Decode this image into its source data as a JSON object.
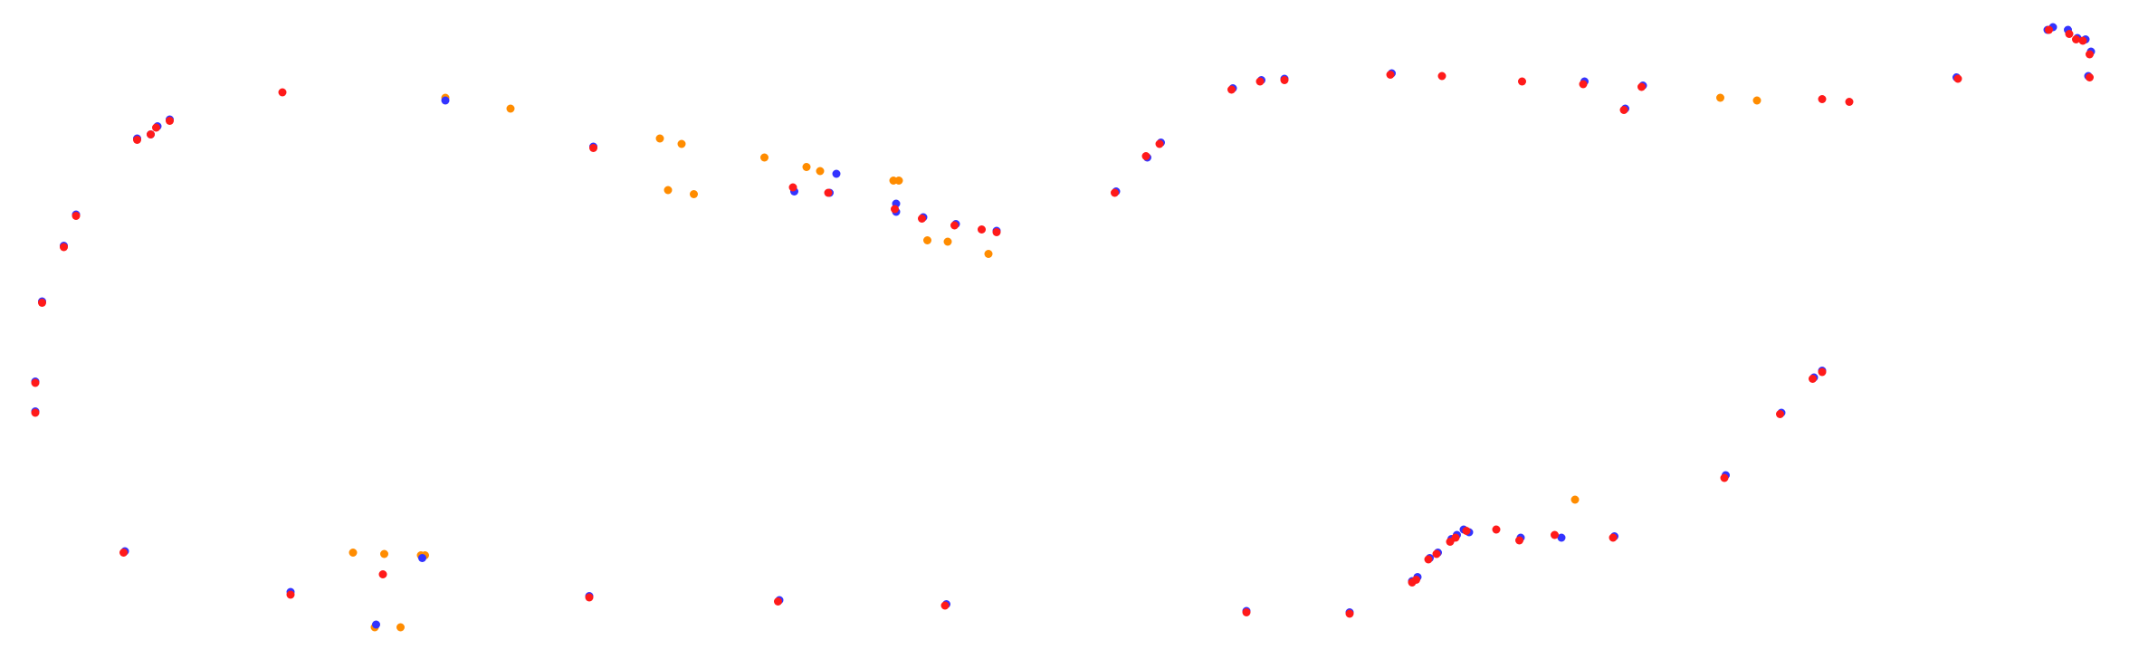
{
  "chart_data": {
    "type": "scatter",
    "title": "",
    "xlabel": "",
    "ylabel": "",
    "grid": false,
    "legend": "none",
    "axes_visible": false,
    "xlim": [
      0,
      1568
    ],
    "ylim": [
      478,
      0
    ],
    "colors": {
      "orange": "#ff8c00",
      "blue": "#3333ff",
      "red": "#ff1a1a"
    },
    "series": [
      {
        "color": "#ff8c00",
        "points": [
          [
            276,
            16
          ],
          [
            295,
            16
          ],
          [
            260,
            71
          ],
          [
            283,
            70
          ],
          [
            310,
            69
          ],
          [
            313,
            69
          ],
          [
            492,
            338
          ],
          [
            511,
            335
          ],
          [
            502,
            372
          ],
          [
            486,
            376
          ],
          [
            376,
            398
          ],
          [
            328,
            406
          ],
          [
            594,
            355
          ],
          [
            604,
            352
          ],
          [
            658,
            345
          ],
          [
            662,
            345
          ],
          [
            683,
            301
          ],
          [
            698,
            300
          ],
          [
            728,
            291
          ],
          [
            563,
            362
          ],
          [
            1160,
            110
          ],
          [
            1267,
            406
          ],
          [
            1294,
            404
          ]
        ]
      },
      {
        "color": "#3333ff",
        "points": [
          [
            214,
            42
          ],
          [
            92,
            72
          ],
          [
            277,
            18
          ],
          [
            311,
            67
          ],
          [
            434,
            39
          ],
          [
            574,
            36
          ],
          [
            697,
            33
          ],
          [
            918,
            28
          ],
          [
            994,
            27
          ],
          [
            1040,
            50
          ],
          [
            1044,
            53
          ],
          [
            1053,
            67
          ],
          [
            1059,
            71
          ],
          [
            1069,
            81
          ],
          [
            1073,
            84
          ],
          [
            1078,
            88
          ],
          [
            1082,
            86
          ],
          [
            1120,
            82
          ],
          [
            1150,
            82
          ],
          [
            1189,
            83
          ],
          [
            1271,
            128
          ],
          [
            1312,
            174
          ],
          [
            1336,
            200
          ],
          [
            1342,
            205
          ],
          [
            26,
            175
          ],
          [
            26,
            197
          ],
          [
            31,
            256
          ],
          [
            47,
            297
          ],
          [
            56,
            320
          ],
          [
            101,
            376
          ],
          [
            111,
            379
          ],
          [
            116,
            385
          ],
          [
            125,
            390
          ],
          [
            328,
            404
          ],
          [
            437,
            370
          ],
          [
            585,
            337
          ],
          [
            611,
            336
          ],
          [
            616,
            350
          ],
          [
            660,
            322
          ],
          [
            660,
            328
          ],
          [
            680,
            318
          ],
          [
            704,
            313
          ],
          [
            734,
            308
          ],
          [
            822,
            337
          ],
          [
            845,
            362
          ],
          [
            855,
            373
          ],
          [
            908,
            413
          ],
          [
            929,
            419
          ],
          [
            946,
            420
          ],
          [
            1025,
            424
          ],
          [
            1167,
            418
          ],
          [
            1197,
            398
          ],
          [
            1210,
            415
          ],
          [
            1441,
            421
          ],
          [
            1508,
            456
          ],
          [
            1512,
            458
          ],
          [
            1523,
            456
          ],
          [
            1530,
            450
          ],
          [
            1536,
            449
          ],
          [
            1538,
            422
          ],
          [
            1540,
            440
          ]
        ]
      },
      {
        "color": "#ff1a1a",
        "points": [
          [
            214,
            40
          ],
          [
            91,
            71
          ],
          [
            282,
            55
          ],
          [
            434,
            38
          ],
          [
            573,
            35
          ],
          [
            696,
            32
          ],
          [
            918,
            27
          ],
          [
            994,
            26
          ],
          [
            1040,
            49
          ],
          [
            1043,
            51
          ],
          [
            1052,
            66
          ],
          [
            1058,
            70
          ],
          [
            1068,
            79
          ],
          [
            1072,
            82
          ],
          [
            1080,
            87
          ],
          [
            1102,
            88
          ],
          [
            1119,
            80
          ],
          [
            1145,
            84
          ],
          [
            1188,
            82
          ],
          [
            1270,
            126
          ],
          [
            1311,
            173
          ],
          [
            1335,
            199
          ],
          [
            1342,
            204
          ],
          [
            26,
            174
          ],
          [
            26,
            196
          ],
          [
            31,
            255
          ],
          [
            47,
            296
          ],
          [
            56,
            319
          ],
          [
            101,
            375
          ],
          [
            111,
            379
          ],
          [
            115,
            384
          ],
          [
            125,
            389
          ],
          [
            208,
            410
          ],
          [
            437,
            369
          ],
          [
            584,
            340
          ],
          [
            610,
            336
          ],
          [
            659,
            324
          ],
          [
            679,
            317
          ],
          [
            703,
            312
          ],
          [
            723,
            309
          ],
          [
            734,
            307
          ],
          [
            821,
            336
          ],
          [
            844,
            363
          ],
          [
            854,
            372
          ],
          [
            907,
            412
          ],
          [
            928,
            418
          ],
          [
            946,
            419
          ],
          [
            1024,
            423
          ],
          [
            1062,
            422
          ],
          [
            1121,
            418
          ],
          [
            1166,
            416
          ],
          [
            1196,
            397
          ],
          [
            1209,
            414
          ],
          [
            1342,
            405
          ],
          [
            1362,
            403
          ],
          [
            1442,
            420
          ],
          [
            1509,
            456
          ],
          [
            1524,
            453
          ],
          [
            1529,
            449
          ],
          [
            1534,
            448
          ],
          [
            1539,
            421
          ],
          [
            1539,
            438
          ]
        ]
      }
    ]
  }
}
